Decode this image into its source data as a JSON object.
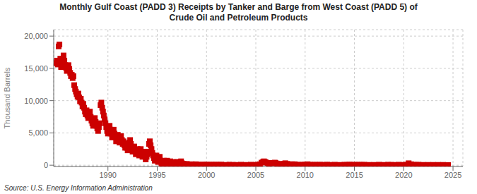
{
  "chart_data": {
    "type": "scatter",
    "title": "Monthly Gulf Coast (PADD 3) Receipts by Tanker and Barge from West Coast (PADD 5) of\nCrude Oil and Petroleum Products",
    "y_label": "Thousand Barrels",
    "annotations": [
      "Source: U.S. Energy Information Administration"
    ],
    "color": "#cc0000",
    "marker": "square",
    "grid": true,
    "xlim": [
      1984.5,
      2026
    ],
    "ylim": [
      -200,
      21000
    ],
    "xticks": [
      1990,
      1995,
      2000,
      2005,
      2010,
      2015,
      2020,
      2025
    ],
    "yticks": [
      0,
      {
        "value": 5000,
        "label": "5,000"
      },
      {
        "value": 10000,
        "label": "10,000"
      },
      {
        "value": 15000,
        "label": "15,000"
      },
      {
        "value": 20000,
        "label": "20,000"
      }
    ],
    "x": [
      1984.75,
      1984.83,
      1984.92,
      1985.0,
      1985.08,
      1985.17,
      1985.25,
      1985.33,
      1985.42,
      1985.5,
      1985.58,
      1985.67,
      1985.75,
      1985.83,
      1985.92,
      1986.0,
      1986.08,
      1986.17,
      1986.25,
      1986.33,
      1986.42,
      1986.5,
      1986.58,
      1986.67,
      1986.75,
      1986.83,
      1986.92,
      1987.0,
      1987.08,
      1987.17,
      1987.25,
      1987.33,
      1987.42,
      1987.5,
      1987.58,
      1987.67,
      1987.75,
      1987.83,
      1987.92,
      1988.0,
      1988.08,
      1988.17,
      1988.25,
      1988.33,
      1988.42,
      1988.5,
      1988.58,
      1988.67,
      1988.75,
      1988.83,
      1988.92,
      1989.0,
      1989.08,
      1989.17,
      1989.25,
      1989.33,
      1989.42,
      1989.5,
      1989.58,
      1989.67,
      1989.75,
      1989.83,
      1989.92,
      1990.0,
      1990.08,
      1990.17,
      1990.25,
      1990.33,
      1990.42,
      1990.5,
      1990.58,
      1990.67,
      1990.75,
      1990.83,
      1990.92,
      1991.0,
      1991.08,
      1991.17,
      1991.25,
      1991.33,
      1991.42,
      1991.5,
      1991.58,
      1991.67,
      1991.75,
      1991.83,
      1991.92,
      1992.0,
      1992.08,
      1992.17,
      1992.25,
      1992.33,
      1992.42,
      1992.5,
      1992.58,
      1992.67,
      1992.75,
      1992.83,
      1992.92,
      1993.0,
      1993.08,
      1993.17,
      1993.25,
      1993.33,
      1993.42,
      1993.5,
      1993.58,
      1993.67,
      1993.75,
      1993.83,
      1993.92,
      1994.0,
      1994.08,
      1994.17,
      1994.25,
      1994.33,
      1994.42,
      1994.5,
      1994.58,
      1994.67,
      1994.75,
      1994.83,
      1994.92,
      1995.0,
      1995.08,
      1995.17,
      1995.25,
      1995.33,
      1995.42,
      1995.5,
      1995.58,
      1995.67,
      1995.75,
      1995.83,
      1995.92,
      1996.0,
      1996.08,
      1996.17,
      1996.25,
      1996.33,
      1996.42,
      1996.5,
      1996.58,
      1996.67,
      1996.75,
      1996.83,
      1996.92,
      1997.0,
      1997.08,
      1997.17,
      1997.25,
      1997.33,
      1997.42,
      1997.5,
      1997.58,
      1997.67,
      1997.75,
      1997.83,
      1997.92,
      1998.0,
      1998.08,
      1998.17,
      1998.33,
      1998.5,
      1998.67,
      1998.83,
      1998.92,
      1999.0,
      1999.17,
      1999.42,
      1999.67,
      1999.83,
      2000.0,
      2000.25,
      2000.5,
      2000.75,
      2001.0,
      2001.25,
      2001.5,
      2002.0,
      2002.33,
      2002.67,
      2003.0,
      2003.5,
      2004.0,
      2004.5,
      2005.0,
      2005.17,
      2005.42,
      2005.58,
      2005.75,
      2005.83,
      2005.92,
      2006.0,
      2006.17,
      2006.33,
      2006.5,
      2006.67,
      2006.83,
      2006.92,
      2007.0,
      2007.17,
      2007.33,
      2007.5,
      2007.67,
      2007.83,
      2007.92,
      2008.0,
      2008.17,
      2008.33,
      2008.5,
      2008.67,
      2008.83,
      2008.92,
      2009.0,
      2009.25,
      2009.5,
      2009.75,
      2010.0,
      2010.25,
      2010.5,
      2010.75,
      2011.0,
      2011.25,
      2011.5,
      2011.75,
      2012.0,
      2012.25,
      2012.5,
      2013.0,
      2013.5,
      2014.0,
      2014.25,
      2014.5,
      2014.75,
      2015.0,
      2015.25,
      2015.5,
      2015.75,
      2016.0,
      2016.5,
      2017.0,
      2017.5,
      2018.0,
      2018.42,
      2018.75,
      2019.0,
      2019.5,
      2020.0,
      2020.25,
      2020.5,
      2020.75,
      2021.0,
      2021.25,
      2021.5,
      2022.0,
      2022.5,
      2023.0,
      2023.5,
      2024.0,
      2024.5
    ],
    "values": [
      15800,
      16200,
      15600,
      18400,
      18700,
      16500,
      15200,
      15800,
      16500,
      17000,
      16200,
      15500,
      15100,
      14600,
      15200,
      15500,
      14900,
      14300,
      13800,
      14000,
      13500,
      13800,
      12400,
      11800,
      11400,
      11000,
      10600,
      11100,
      10500,
      9900,
      10300,
      9700,
      9100,
      9500,
      8900,
      8300,
      7900,
      8500,
      7700,
      7300,
      7900,
      8300,
      7500,
      6900,
      6500,
      6100,
      6700,
      7300,
      6700,
      6100,
      5700,
      5300,
      5900,
      6500,
      9300,
      9700,
      8900,
      8300,
      7700,
      7100,
      6500,
      5900,
      5300,
      4900,
      5500,
      6100,
      5500,
      4900,
      4300,
      4900,
      5500,
      4900,
      4300,
      3700,
      4300,
      4700,
      4100,
      3500,
      4100,
      4500,
      3900,
      3300,
      3700,
      3100,
      2700,
      3300,
      2700,
      2300,
      2900,
      3500,
      3900,
      3300,
      2700,
      2100,
      2500,
      2900,
      2300,
      1700,
      2100,
      2500,
      1900,
      1500,
      2100,
      2500,
      1900,
      1300,
      1700,
      2100,
      1500,
      900,
      1300,
      1700,
      2100,
      3300,
      3700,
      3100,
      2500,
      1900,
      1500,
      1100,
      700,
      1100,
      1500,
      900,
      500,
      900,
      1300,
      700,
      300,
      100,
      400,
      700,
      300,
      100,
      400,
      700,
      400,
      200,
      400,
      600,
      300,
      100,
      300,
      500,
      200,
      100,
      300,
      500,
      300,
      100,
      300,
      500,
      600,
      300,
      100,
      200,
      100,
      50,
      100,
      200,
      100,
      50,
      100,
      150,
      50,
      100,
      150,
      50,
      100,
      50,
      100,
      50,
      100,
      50,
      100,
      50,
      100,
      50,
      100,
      50,
      80,
      50,
      50,
      80,
      50,
      80,
      50,
      80,
      150,
      400,
      550,
      600,
      500,
      450,
      350,
      250,
      300,
      350,
      300,
      400,
      350,
      250,
      200,
      150,
      100,
      200,
      250,
      300,
      200,
      150,
      100,
      150,
      100,
      150,
      100,
      80,
      50,
      80,
      100,
      150,
      80,
      50,
      80,
      50,
      80,
      50,
      50,
      80,
      50,
      80,
      50,
      80,
      50,
      100,
      50,
      80,
      50,
      80,
      50,
      80,
      50,
      50,
      80,
      50,
      80,
      50,
      50,
      80,
      50,
      80,
      300,
      150,
      80,
      50,
      80,
      50,
      50,
      50,
      50,
      50,
      30
    ]
  }
}
